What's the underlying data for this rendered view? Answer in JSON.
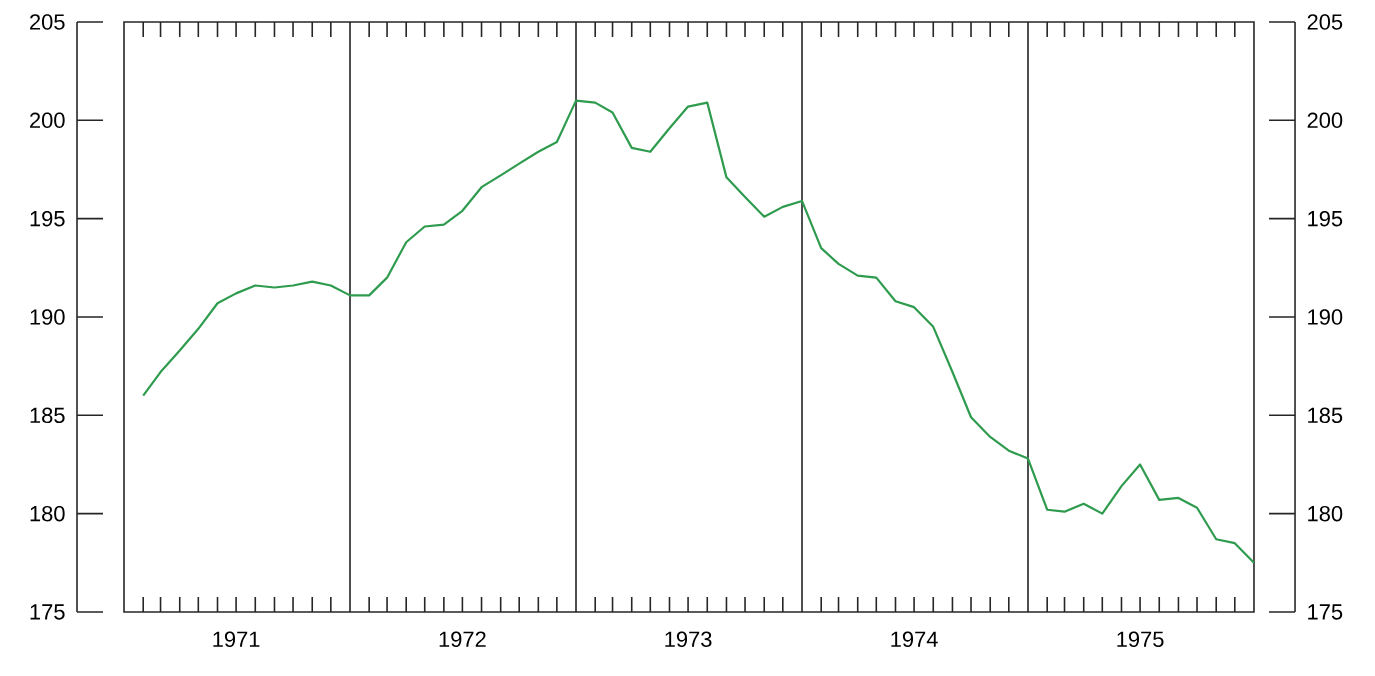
{
  "chart_data": {
    "type": "line",
    "x": [
      "1971-02",
      "1971-03",
      "1971-04",
      "1971-05",
      "1971-06",
      "1971-07",
      "1971-08",
      "1971-09",
      "1971-10",
      "1971-11",
      "1971-12",
      "1972-01",
      "1972-02",
      "1972-03",
      "1972-04",
      "1972-05",
      "1972-06",
      "1972-07",
      "1972-08",
      "1972-09",
      "1972-10",
      "1972-11",
      "1972-12",
      "1973-01",
      "1973-02",
      "1973-03",
      "1973-04",
      "1973-05",
      "1973-06",
      "1973-07",
      "1973-08",
      "1973-09",
      "1973-10",
      "1973-11",
      "1973-12",
      "1974-01",
      "1974-02",
      "1974-03",
      "1974-04",
      "1974-05",
      "1974-06",
      "1974-07",
      "1974-08",
      "1974-09",
      "1974-10",
      "1974-11",
      "1974-12",
      "1975-01",
      "1975-02",
      "1975-03",
      "1975-04",
      "1975-05",
      "1975-06",
      "1975-07",
      "1975-08",
      "1975-09",
      "1975-10",
      "1975-11",
      "1975-12",
      "1976-01"
    ],
    "series": [
      {
        "color": "#2e9b4e",
        "values": [
          186.0,
          187.2,
          188.3,
          189.4,
          190.7,
          191.2,
          191.6,
          191.5,
          191.6,
          191.8,
          191.6,
          191.1,
          191.1,
          192.0,
          193.8,
          194.6,
          194.7,
          195.4,
          196.6,
          197.2,
          197.8,
          198.4,
          198.9,
          201.0,
          200.9,
          200.4,
          198.6,
          198.4,
          199.6,
          200.7,
          200.9,
          197.1,
          196.1,
          195.1,
          195.6,
          195.9,
          193.5,
          192.7,
          192.1,
          192.0,
          190.8,
          190.5,
          189.5,
          187.2,
          184.9,
          183.9,
          183.2,
          182.8,
          180.2,
          180.1,
          180.5,
          180.0,
          181.4,
          182.5,
          180.7,
          180.8,
          180.3,
          178.7,
          178.5,
          177.5
        ]
      }
    ],
    "xlim": [
      "1971-01",
      "1976-01"
    ],
    "xticks": [
      {
        "value": "1971-02",
        "label": null
      },
      {
        "value": "1971-03",
        "label": null
      },
      {
        "value": "1971-04",
        "label": null
      },
      {
        "value": "1971-05",
        "label": null
      },
      {
        "value": "1971-06",
        "label": null
      },
      {
        "value": "1971-07",
        "label": "1971"
      },
      {
        "value": "1971-08",
        "label": null
      },
      {
        "value": "1971-09",
        "label": null
      },
      {
        "value": "1971-10",
        "label": null
      },
      {
        "value": "1971-11",
        "label": null
      },
      {
        "value": "1971-12",
        "label": null
      },
      {
        "value": "1972-02",
        "label": null
      },
      {
        "value": "1972-03",
        "label": null
      },
      {
        "value": "1972-04",
        "label": null
      },
      {
        "value": "1972-05",
        "label": null
      },
      {
        "value": "1972-06",
        "label": null
      },
      {
        "value": "1972-07",
        "label": "1972"
      },
      {
        "value": "1972-08",
        "label": null
      },
      {
        "value": "1972-09",
        "label": null
      },
      {
        "value": "1972-10",
        "label": null
      },
      {
        "value": "1972-11",
        "label": null
      },
      {
        "value": "1972-12",
        "label": null
      },
      {
        "value": "1973-02",
        "label": null
      },
      {
        "value": "1973-03",
        "label": null
      },
      {
        "value": "1973-04",
        "label": null
      },
      {
        "value": "1973-05",
        "label": null
      },
      {
        "value": "1973-06",
        "label": null
      },
      {
        "value": "1973-07",
        "label": "1973"
      },
      {
        "value": "1973-08",
        "label": null
      },
      {
        "value": "1973-09",
        "label": null
      },
      {
        "value": "1973-10",
        "label": null
      },
      {
        "value": "1973-11",
        "label": null
      },
      {
        "value": "1973-12",
        "label": null
      },
      {
        "value": "1974-02",
        "label": null
      },
      {
        "value": "1974-03",
        "label": null
      },
      {
        "value": "1974-04",
        "label": null
      },
      {
        "value": "1974-05",
        "label": null
      },
      {
        "value": "1974-06",
        "label": null
      },
      {
        "value": "1974-07",
        "label": "1974"
      },
      {
        "value": "1974-08",
        "label": null
      },
      {
        "value": "1974-09",
        "label": null
      },
      {
        "value": "1974-10",
        "label": null
      },
      {
        "value": "1974-11",
        "label": null
      },
      {
        "value": "1974-12",
        "label": null
      },
      {
        "value": "1975-02",
        "label": null
      },
      {
        "value": "1975-03",
        "label": null
      },
      {
        "value": "1975-04",
        "label": null
      },
      {
        "value": "1975-05",
        "label": null
      },
      {
        "value": "1975-06",
        "label": null
      },
      {
        "value": "1975-07",
        "label": "1975"
      },
      {
        "value": "1975-08",
        "label": null
      },
      {
        "value": "1975-09",
        "label": null
      },
      {
        "value": "1975-10",
        "label": null
      },
      {
        "value": "1975-11",
        "label": null
      },
      {
        "value": "1975-12",
        "label": null
      }
    ],
    "ylim": [
      175,
      205
    ],
    "yticks": [
      175,
      180,
      185,
      190,
      195,
      200,
      205
    ],
    "y2lim": [
      175,
      205
    ],
    "y2ticks": [
      175,
      180,
      185,
      190,
      195,
      200,
      205
    ],
    "ref_lines": [
      {
        "axis": "x",
        "value": "1972-01",
        "color": "#222222"
      },
      {
        "axis": "x",
        "value": "1973-01",
        "color": "#222222"
      },
      {
        "axis": "x",
        "value": "1974-01",
        "color": "#222222"
      },
      {
        "axis": "x",
        "value": "1975-01",
        "color": "#222222"
      }
    ]
  }
}
